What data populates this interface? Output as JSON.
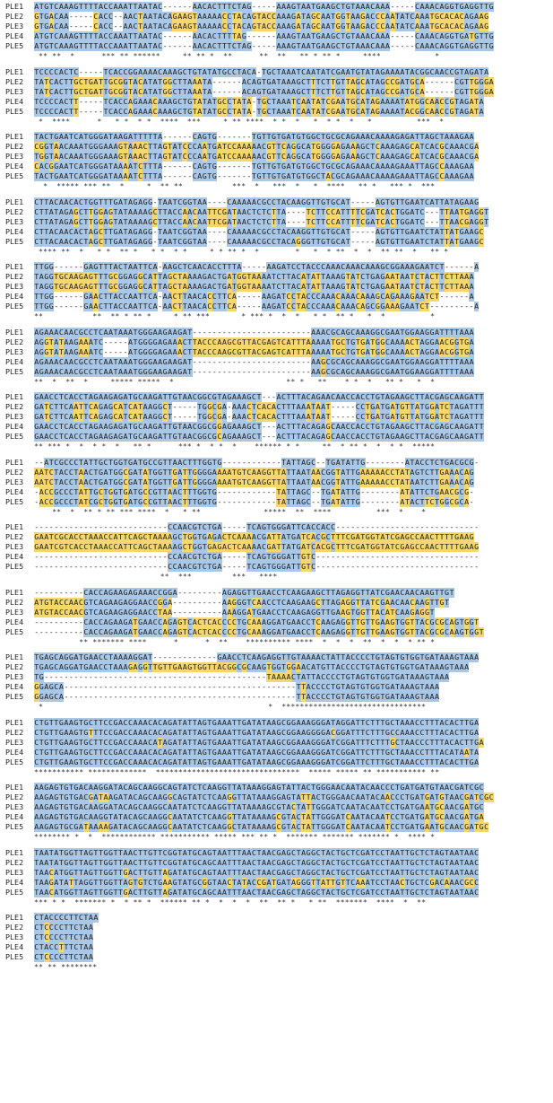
{
  "labels": [
    "PLE1",
    "PLE2",
    "PLE3",
    "PLE4",
    "PLE5"
  ],
  "colors": {
    "conserved": "#a9c7e6",
    "variant": "#f6d76b",
    "background": "#ffffff"
  },
  "blocks": [
    {
      "rows": [
        "ATGTCAAAGTTTTACCAAATTAATAC------AACACTTTCTAG-----AAAGTAATGAAGCTGTAAACAAA-----CAAACAGGTGAGGTTG",
        "GTGACAA-----CACC--AACTAATACAGAAGTAAAAACCTACAGTACCAAAGATAGCAATGGTAAGACCCAATATCAAATGCACACAGAAG",
        "GTGACAA-----CACC--AACTAATACAGAAGTAAAAACCTACAGTACCAAAGATAGCAATGGTAAGACCCAATATCAAATGCACACAGAAG",
        "ATGTCAAAGTTTTACCAAATTAATAC------AACACTTTTAG------AAAGTAATGAAGCTGTAAACAAA-----CAAACAGGTGATGTTG",
        "ATGTCAAAGTTTTACCAAATTAATAC------AACACTTTCTAG-----AAAGTAATGAAGCTGTAAACAAA-----CAAACAGGTGAGGTTG"
      ],
      "cons": " ** **  *      *** ** ******     ** ** *  **      **  **   ** * ** *     ****            *"
    },
    {
      "rows": [
        "TCCCCACTC-----TCACCGGAAAACAAAGCTGTATATGCCTACA-TGCTAAATCAATATCGAATGTATAGAAAATACGGCAACCGTAGATA",
        "TATCACTTGCTGATTGCGGTACATATGGCTTAAATA------ACAGTGATAAAGCTTTCTTGTTAGCATAGCCGATGCA------CGTTGGGA",
        "TATCACTTGCTGATTGCGGTACATATGGCTTAAATA------ACAGTGATAAAGCTTTCTTGTTAGCATAGCCGATGCA------CGTTGGGA",
        "TCCCCACTT-----TCACCAGAAACAAAGCTGTATATGCCTATA-TGCTAAATCAATATCGAATGCATAGAAAATATGGCAACCGTAGATA",
        "TCCCCACTT-----TCACCAGAAACAAAGCTGTATATGCCTATA-TGCTAAATCAATATCGAATGCATAGAAAATACGGCAACCGTAGATA"
      ],
      "cons": " *  ****      *   * *  * *  ****  ***     * ** ****  * *  *   *  * *  *   *          ***  *"
    },
    {
      "rows": [
        "TACTGAATCATGGGATAAGATTTTTA------CAGTG-------TGTTGTGATGTGGCTGCGCAGAAACAAAAGAGATTAGCTAAAGAA",
        "CGGTAACAAATGGGAAAGTAAACTTAGTATCCCAATGATCCAAAAACGTTCAGGCATGGGGAGAAAGCTCAAAGAGCATCACGCAAACGA",
        "TGGTAACAAATGGGAAAGTAAACTTAGTATCCCAATGATCCAAAAACGTTCAGGCATGGGGAGAAAGCTCAAAGAGCATCACGCAAACGA",
        "CACGGAATCATGGGATAAAATCTTTA------CAGTG-------TGTTGTGATGTGGCTGCGCAGAAACAAAAGAAATTAGCCAAAGAA",
        "TACTGAATCATGGGATAAAATCTTTA------CAGTG-------TGTTGTGATGTGGCTACGCAGAAACAAAAGAAATTAGCCAAAGAA"
      ],
      "cons": "  *  ***** *** **  *     *  ** **           ***  *   ***  *   *  ****   ** *   *** *  ***"
    },
    {
      "rows": [
        "CTTACAACACTGGTTTGATAGAGG-TAATCGGTAA----CAAAAACGCCTACAAGGTTGTGCAT-----AGTGTTGAATCATTATAGAAG",
        "CTTATAGAGCTTGGAGTATAAAAGCTTACCAACAATTCGATAACTCTCTTA----TCTTCCATTTTCGATCACTGGATC---TTAATGAGGT",
        "CTTATAGAGCTTGGAGTATAAAAGCTTACCAACAATTCGATAACTCTCTTA----TCTTCCATTTTCGATCACTGGATC---TTAACGAGGT",
        "CTTACAACACTAGCTTGATAGAGG-TAATCGGTAA----CAAAAACGCCTACAAGGTTGTGCAT-----AGTGTTGAATCTATTATGAAGC",
        "CTTACAACACTAGCTTGATAGAGG-TAATCGGTAA----CAAAAACGCCTACAGGGTTGTGCAT-----AGTGTTGAATCTATTATGAAGC"
      ],
      "cons": " **** **  *   * *  ** *   * *  * *     * * ** *  *        *   *  * **  *  *  ** **  *   ** *"
    },
    {
      "rows": [
        "TTGG------GAGTTTACTAATTCA-AAGCTCAACACCTTTA-----AAGATCCTACCCAAACAAACAAAGCGGAAAGAATCT------A",
        "TAGGTGCAAGAGTTTGCGGAGGCATTAGCTAAAAGACTGATGGTAAAATCTTACATATTAAAGTATCTGAGAATAATCTACTTCTTAAA",
        "TAGGTGCAAGAGTTTGCGGAGGCATTAGCTAAAAGACTGATGGTAAAATCTTACATATTAAAGTATCTGAGAATAATCTACTTCTTAAA",
        "TTGG------GAACTTACCAATTCA-AACTTAACACCTTCA-----AAGATCCTACCCAAACAAACAAAGCAGAAAGAATCT------A",
        "TTGG------GAACTTACCAATTCA-AACTTAACACCTTCA-----AAGATCCTACCCAAACAAACAGCGGAAAGAATCT---------A"
      ],
      "cons": "**           **  ** * ** *     * ** ***       * *** *  *  *   * *  ** *   *  *          *"
    },
    {
      "rows": [
        "AGAAACAACGCCTCAATAAATGGGAAGAAGAT------------------------AAACGCAGCAAAGGCGAATGGAAGGATTTTAAA",
        "AGGTATAAGAAATC-----ATGGGGAGAAACTTACCCAAGCGTTACGAGTCATTTAAAAATGCTGTGATGGCAAAACTAGGAACGGTGA",
        "AGGTATAAGAAATC-----ATGGGGAGAAACTTACCCAAGCGTTACGAGTCATTTAAAAATGCTGTGATGGCAAAACTAGGAACGGTGA",
        "AGAAACAACGCCTCAATAAATGGGAAGAAGAT------------------------AAGCGCAGCAAAGGCGAATGGAAGGATTTTAAA",
        "AGAAACAACGCCTCAATAAATGGGAAGAAGAT------------------------AAGCGCAGCAAAGGCGAATGGAAGGATTTTAAA"
      ],
      "cons": "**  *  **  *     ***** *****  *                         ** *   **    * *  *   ** *   *  *"
    },
    {
      "rows": [
        "GAACCTCACCTAGAAGAGATGCAAGATTGTAACGGCGTAGAAAGCT---ACTTTACAGAACAACCACCTGTAGAAGCTTACGAGCAAGATT",
        "GATCTTCAATTCAGAGCATCATAAGGCT-----TGGCGA-AAACTCACACTTTAAATAAT-----CCTGATGATGTTATGGATCTAGATTT",
        "GATCTTCAATTCAGAGCATCATAAGGCT-----TGGCGA-AAACTCACACTTTAAATAAT-----CCTGATGATGTTATGGATCTAGATTT",
        "GAACCTCACCTAGAAGAGATGCAAGATTGTAACGGCGGAGAAAGCT---ACTTTACAGAGCAACCACCTGTAGAAGCTTACGAGCAAGATT",
        "GAACCTCACCTAGAAGAGATGCAAGATTGTAACGGCGCAGAAAGCT---ACTTTACAGAGCAACCACCTGTAGAAGCTTACGAGCAAGATT"
      ],
      "cons": "** *** *  *  * *  *   ** *      *** *  * *  *    ****** * *     **  * ** *  *  * *  *****"
    },
    {
      "rows": [
        "--ATCGCCCTATTGCTGGTGATGCCGTTAACTTTGGTG------------TATTAGC--TGATATTG--------ATACCTCTGACGCG-",
        "AATCTACCTAACTGATGGCGATATGGTTGATTGGGGAAAATGTCAAGGTTATTAATAACGGTATTGAAAAACCTATAGTCTTGAAACAG",
        "AATCTACCTAACTGATGGCGATATGGTTGATTGGGGAAAATGTCAAGGTTATTAATAACGGTATTGAAAAACCTATAATCTTGAAACAG",
        "-ACCGCCCTATTGCTGGTGATGCCGTTAACTTTGGTG------------TATTAGC--TGATATTG--------ATATTCTGAACGCG-",
        "-ACCGCCCTATCGCTGGTGATGCCGTTAACTTTGGTG------------TATTAGC--TGATATTG--------ATACTTCTGGCGCA-"
      ],
      "cons": "    **  *  ** * ** *** ****  *   * **              *****  **  ****          ***  *    *"
    },
    {
      "rows": [
        "---------------------------CCAACGTCTGA-----TCAGTGGGATTCACCACC-----------------------------",
        "GAATCGCACCTAAACCATTCAGCTAAAAGCTGGTGAGACTCAAAACGATTATGATCACGCTTTCGATGGTATCGAGCCAACTTTTGAAG",
        "GAATCGTCACCTAAACCATTCAGCTAAAAGCTGGTGAGACTCAAAACGATTATGATCACGCTTTCGATGGTATCGAGCCAACTTTTGAAG",
        "---------------------------CCAACGTCTGA-----TCAGTGGGATTGTC---------------------------------",
        "---------------------------CCAACGTCTGA-----TCAGTGGGATTGTC---------------------------------"
      ],
      "cons": "                            **  ***         ***   ****                                     "
    },
    {
      "rows": [
        "----------CACCAGAAGAGAAACCGGA---------AGAGGTTGAACCTCAAGAAGCTTAGAGGTTATCGAACAACAAGTTGT",
        "ATGTACCAACGTCAGAAGAGGAACCGGA----------AAGGGTCAACCTCAAGAAGCTTAGAGGTTATCGAACAACAAGTTGT",
        "ATGTACCAACGTCAGAAGAGGAACCTAA----------AAAGGATGAACCTCAAGAGGTTGAAGTGGTTACATCAAGAGGT",
        "----------CACCAGAAGATGAACCAGAGTCACTCACCCCTGCAAAGGATGAACCTCAAGAGGTTGTTGAAGTGGTTACGCGCAGTGGT",
        "----------CACCAGAAGATGAACCAGAGTCACTCACCCCTGCAAAGGATGAACCTCAAGAGGTTGTTGAAGTGGTTACGCGCAAGTGGT"
      ],
      "cons": "          ** ******* ****      *      *  **    ********** ****  *  *  *  **  *  *  * ** *"
    },
    {
      "rows": [
        "TGAGCAGGATGAACCTAAAAGGAT-------------GAACCTCAAGAGGTTGTAAAACTATTACCCCTGTAGTGTGGTGATAAAGTAAA",
        "TGAGCAGGATGAACCTAAAGAGGTTGTTGAAGTGGTTACGGCGCAAGTGGTGGAACATGTTACCCCTGTAGTGTGGTGATAAAGTAAA",
        "TG---------------------------------------------TAAAACTATTACCCCTGTAGTGTGGTGATAAAGTAAA",
        "GGAGCA-----------------------------------------------TTACCCCTGTAGTGTGGTGATAAAGTAAA",
        "GGAGCA-----------------------------------------------TTACCCCTGTAGTGTGGTGATAAAGTAAA"
      ],
      "cons": " *                                                  *  ********************************"
    },
    {
      "rows": [
        "CTGTTGAAGTGCTTCCGACCAAACACAGATATTAGTGAAATTGATATAAGCGGAAAGGGATAGGATTCTTTGCTAAACCTTTACACTTGA",
        "CTGTTGAAGTGTTTCCGACCAAACACAGATATTAGTGAAATTGATATAAGCGGAAGGGGACGGATTTCTTTGCCAAACCTTTACACTTGA",
        "CTGTTGAAGTGCTTCCGACCAAACATAGATATTAGTGAAATTGATATAAGCGGAAAGGGATCGGATTTCTTTGCTAACCCTTTACACTTGA",
        "CTGTTGAAGTGCTTCCGACCAAACACAGATATTAGTGAAATTGATATAAGCGGAAAGGGATCGGATTCTTTGCTAAACCTTTACATAATA",
        "CTGTTGAAGTGCTTCCGACCAAACACAGATATTAGTGAAATTGATATAAGCGGAAAGGGATCGGATTCTTTGCTAAACCTTTACACTTGA"
      ],
      "cons": "*********** *************  ********************************  ***** ***** ** *********** **"
    },
    {
      "rows": [
        "AAGAGTGTGACAAGGATACAGCAAGGCAGTATCTCAAGGTTATAAAGGAGTATTACTGGGAACAATACAACCCTGATGATGTAACGATCGC",
        "AAGAGTGTGACGATAAGATACAGCAAGGCAGTATCTCAAGGTTATAAAGGAGTATTACTGGGAACAATACAACCCTGATGATGTAACGATCGC",
        "AAGAGTGTGACAAGGATACAGCAAGGCAATATCTCAAGGTTATAAAAGCGTACTATTGGGATCAATACAATCCTGATGAATGCAACGATGC",
        "AAGAGTGTGACAAGGTATACAGCAAGGCAATATCTCAAGGTTATAAAAGCGTACTATTGGGATCAATACAATCCTGATGATGCAACGATGA",
        "AAGAGTGCGATAAAAGATACAGCAAGGCAATATCTCAAGGCTATAAAAGCGTACTATTGGGATCAATACAATCCTGATGAATGCAACGATGC"
      ],
      "cons": "******** *  *  ************ *********** ***** *** ** *  ******* ******* ******* *  **** *"
    },
    {
      "rows": [
        "TAATATGGTTAGTTGGTTAACTTGTTCGGTATGCAGTAATTTAACTAACGAGCTAGGCTACTGCTCGATCCTAATTGCTCTAGTAATAAC",
        "TAATATGGTTAGTTGGTTAACTTGTTCGGTATGCAGCAATTTAACTAACGAGCTAGGCTACTGCTCGATCCTAATTGCTCTAGTAATAAC",
        "TAACATGGTTAGTTGGTTGACTTGTTAGATATGCAGTAATTTAACTAACGAGCTAGGCTACTGCTCGATCCTAATTGCTCTAGTAATAAC",
        "TAAGATATTAGGTTGGTTAGTGTCTGAAGTATGCGGTAACTATACCGATGATAGGGTTATTGTTCAAATCCTAACTGCTCGACAAACGCC",
        "TAACATGGTTAGTTGGTTGACTTGTTAGATATGCAGCAATTTAACTAACGAGCTAGGCTACTGCTCGATCCTAATTGCTCTAGTAATAAC"
      ],
      "cons": "*** * *  ******* *  * ** *  ****** ** *  *  *  *  **  ** *   * **  *******  ****  *  **"
    },
    {
      "rows": [
        "CTACCCCTTCTAA",
        "CTCCCCTTCTAA",
        "CTCCCCTTCTAA",
        "CTACCTTTCTAA",
        "CTCCCCTTCTAA"
      ],
      "cons": "** ** ********"
    }
  ]
}
